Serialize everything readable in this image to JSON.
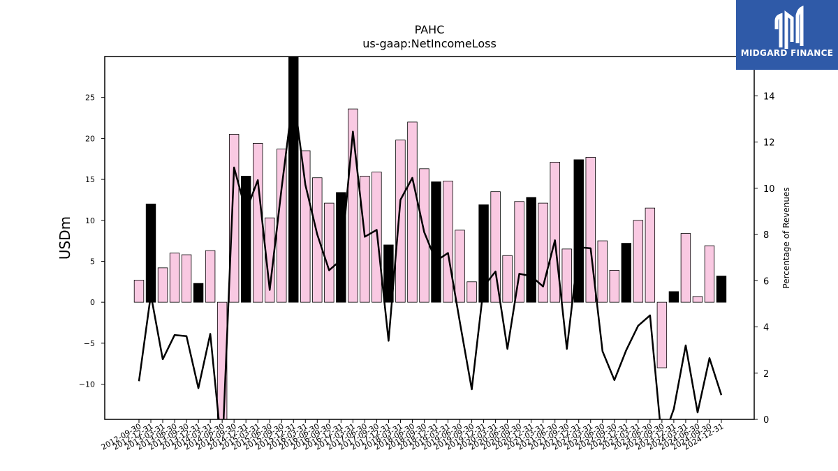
{
  "brand": {
    "name": "MIDGARD FINANCE",
    "icon": "midgard-logo-icon",
    "color": "#2f5aa8"
  },
  "chart_data": {
    "type": "bar",
    "title": "PAHC",
    "subtitle": "us-gaap:NetIncomeLoss",
    "ylabel": "USDm",
    "y2label": "Percentage of Revenues",
    "ylim": [
      -14.3,
      30
    ],
    "y2lim": [
      0,
      15.7
    ],
    "yticks": [
      -10,
      -5,
      0,
      5,
      10,
      15,
      20,
      25
    ],
    "y2ticks": [
      0,
      2,
      4,
      6,
      8,
      10,
      12,
      14
    ],
    "colors": {
      "quarter": "#f9c9e2",
      "annual": "#000000",
      "line": "#000000"
    },
    "categories": [
      "2012-09-30",
      "2012-12-31",
      "2013-03-31",
      "2013-06-30",
      "2013-09-30",
      "2013-12-31",
      "2014-03-31",
      "2014-06-30",
      "2014-09-30",
      "2014-12-31",
      "2015-03-31",
      "2015-06-30",
      "2015-09-30",
      "2015-12-31",
      "2016-03-31",
      "2016-06-30",
      "2016-09-30",
      "2016-12-31",
      "2017-03-31",
      "2017-06-30",
      "2017-09-30",
      "2017-12-31",
      "2018-03-31",
      "2018-06-30",
      "2018-09-30",
      "2018-12-31",
      "2019-03-31",
      "2019-06-30",
      "2019-09-30",
      "2019-12-31",
      "2020-03-31",
      "2020-06-30",
      "2020-09-30",
      "2020-12-31",
      "2021-03-31",
      "2021-06-30",
      "2021-09-30",
      "2021-12-31",
      "2022-03-31",
      "2022-06-30",
      "2022-09-30",
      "2022-12-31",
      "2023-03-31",
      "2023-06-30",
      "2023-09-30",
      "2023-12-31",
      "2024-03-31",
      "2024-06-30",
      "2024-09-30",
      "2024-12-31"
    ],
    "series": [
      {
        "values": [
          2.7,
          12.0,
          4.2,
          6.0,
          5.8,
          2.3,
          6.3,
          -15.0,
          20.5,
          15.4,
          19.4,
          10.3,
          18.7,
          29.9,
          18.5,
          15.2,
          12.1,
          13.4,
          23.6,
          15.4,
          15.9,
          7.0,
          19.8,
          22.0,
          16.3,
          14.7,
          14.8,
          8.8,
          2.5,
          11.9,
          13.5,
          5.7,
          12.3,
          12.8,
          12.1,
          17.1,
          6.5,
          17.4,
          17.7,
          7.5,
          3.9,
          7.2,
          10.0,
          11.5,
          -8.0,
          1.3,
          8.4,
          0.7,
          6.9,
          3.2
        ]
      },
      {
        "name": "Percentage of Revenues",
        "values": [
          1.65,
          5.4,
          2.6,
          3.65,
          3.6,
          1.35,
          3.7,
          -1.5,
          10.9,
          9.0,
          10.35,
          5.6,
          10.0,
          14.1,
          10.15,
          8.0,
          6.45,
          6.9,
          12.45,
          7.9,
          8.2,
          3.4,
          9.5,
          10.45,
          8.1,
          6.85,
          7.2,
          4.2,
          1.3,
          5.75,
          6.4,
          3.05,
          6.3,
          6.2,
          5.75,
          7.75,
          3.05,
          7.45,
          7.4,
          2.95,
          1.7,
          3.0,
          4.05,
          4.5,
          -1.0,
          0.45,
          3.2,
          0.3,
          2.65,
          1.05
        ]
      }
    ],
    "annual_indices": [
      1,
      5,
      9,
      13,
      17,
      21,
      25,
      29,
      33,
      37,
      41,
      45,
      49
    ],
    "grid": false,
    "legend": "none"
  }
}
